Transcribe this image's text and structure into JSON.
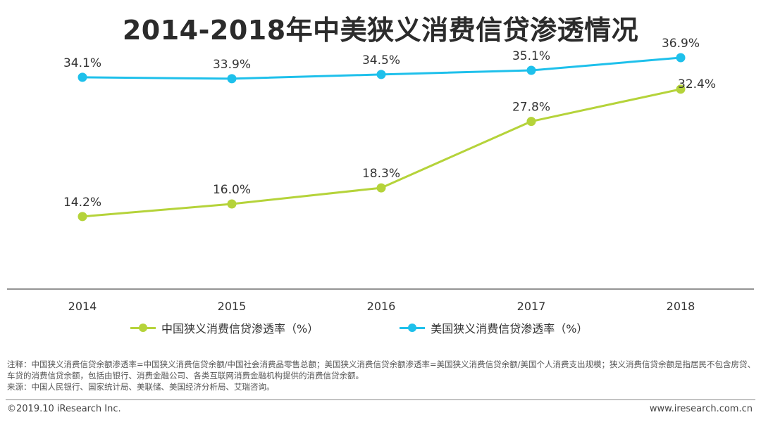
{
  "title": "2014-2018年中美狭义消费信贷渗透情况",
  "colors": {
    "china": "#b5d33a",
    "usa": "#1ec0eb",
    "axis": "#555555"
  },
  "chart_data": {
    "type": "line",
    "categories": [
      "2014",
      "2015",
      "2016",
      "2017",
      "2018"
    ],
    "series": [
      {
        "name": "中国狭义消费信贷渗透率（%）",
        "values": [
          14.2,
          16.0,
          18.3,
          27.8,
          32.4
        ],
        "labels": [
          "14.2%",
          "16.0%",
          "18.3%",
          "27.8%",
          "32.4%"
        ]
      },
      {
        "name": "美国狭义消费信贷渗透率（%）",
        "values": [
          34.1,
          33.9,
          34.5,
          35.1,
          36.9
        ],
        "labels": [
          "34.1%",
          "33.9%",
          "34.5%",
          "35.1%",
          "36.9%"
        ]
      }
    ],
    "legend": "bottom",
    "grid": false
  },
  "notes": {
    "line1": "注释：中国狭义消费信贷余额渗透率=中国狭义消费信贷余额/中国社会消费品零售总额；美国狭义消费信贷余额渗透率=美国狭义消费信贷余额/美国个人消费支出规模；狭义消费信贷余额是指居民不包含房贷、车贷的消费信贷余额，包括由银行、消费金融公司、各类互联网消费金融机构提供的消费信贷余额。",
    "line2": "来源：中国人民银行、国家统计局、美联储、美国经济分析局、艾瑞咨询。"
  },
  "footer": {
    "copyright": "©2019.10 iResearch Inc.",
    "website": "www.iresearch.com.cn"
  }
}
